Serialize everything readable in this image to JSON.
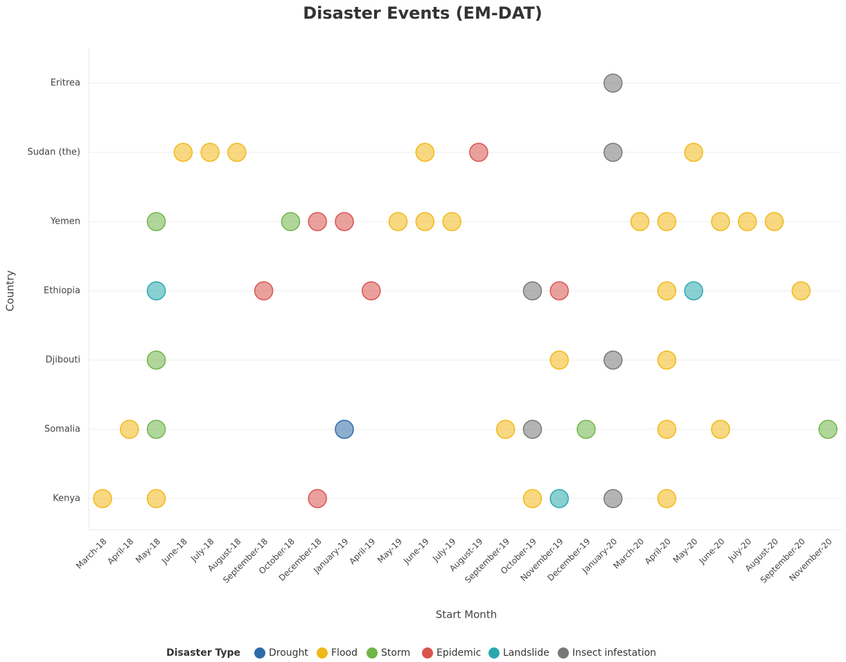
{
  "chart_data": {
    "type": "scatter",
    "title": "Disaster Events (EM-DAT)",
    "xlabel": "Start Month",
    "ylabel": "Country",
    "legend_title": "Disaster Type",
    "legend": "bottom",
    "grid": true,
    "categories": [
      "March-18",
      "April-18",
      "May-18",
      "June-18",
      "July-18",
      "August-18",
      "September-18",
      "October-18",
      "December-18",
      "January-19",
      "April-19",
      "May-19",
      "June-19",
      "July-19",
      "August-19",
      "September-19",
      "October-19",
      "November-19",
      "December-19",
      "January-20",
      "March-20",
      "April-20",
      "May-20",
      "June-20",
      "July-20",
      "August-20",
      "September-20",
      "November-20"
    ],
    "y_categories": [
      "Eritrea",
      "Sudan (the)",
      "Yemen",
      "Ethiopia",
      "Djibouti",
      "Somalia",
      "Kenya"
    ],
    "series": [
      {
        "name": "Drought",
        "color": "#2f6aa8",
        "x": [
          "January-19"
        ],
        "y": [
          "Somalia"
        ]
      },
      {
        "name": "Flood",
        "color": "#f2b818",
        "x": [
          "June-18",
          "July-18",
          "August-18",
          "June-19",
          "May-20",
          "May-19",
          "June-19",
          "July-19",
          "March-20",
          "April-20",
          "June-20",
          "July-20",
          "August-20",
          "April-20",
          "September-20",
          "November-19",
          "April-20",
          "April-18",
          "September-19",
          "April-20",
          "June-20",
          "March-18",
          "May-18",
          "October-19",
          "April-20"
        ],
        "y": [
          "Sudan (the)",
          "Sudan (the)",
          "Sudan (the)",
          "Sudan (the)",
          "Sudan (the)",
          "Yemen",
          "Yemen",
          "Yemen",
          "Yemen",
          "Yemen",
          "Yemen",
          "Yemen",
          "Yemen",
          "Ethiopia",
          "Ethiopia",
          "Djibouti",
          "Djibouti",
          "Somalia",
          "Somalia",
          "Somalia",
          "Somalia",
          "Kenya",
          "Kenya",
          "Kenya",
          "Kenya"
        ]
      },
      {
        "name": "Storm",
        "color": "#6fb548",
        "x": [
          "May-18",
          "October-18",
          "May-18",
          "May-18",
          "December-19",
          "November-20"
        ],
        "y": [
          "Yemen",
          "Yemen",
          "Djibouti",
          "Somalia",
          "Somalia",
          "Somalia"
        ]
      },
      {
        "name": "Epidemic",
        "color": "#d9534f",
        "x": [
          "August-19",
          "December-18",
          "January-19",
          "September-18",
          "April-19",
          "November-19",
          "December-18"
        ],
        "y": [
          "Sudan (the)",
          "Yemen",
          "Yemen",
          "Ethiopia",
          "Ethiopia",
          "Ethiopia",
          "Kenya"
        ]
      },
      {
        "name": "Landslide",
        "color": "#2aa7ad",
        "x": [
          "May-18",
          "May-20",
          "November-19"
        ],
        "y": [
          "Ethiopia",
          "Ethiopia",
          "Kenya"
        ]
      },
      {
        "name": "Insect infestation",
        "color": "#777777",
        "x": [
          "January-20",
          "January-20",
          "October-19",
          "January-20",
          "October-19",
          "January-20"
        ],
        "y": [
          "Eritrea",
          "Sudan (the)",
          "Ethiopia",
          "Djibouti",
          "Somalia",
          "Kenya"
        ]
      }
    ]
  }
}
